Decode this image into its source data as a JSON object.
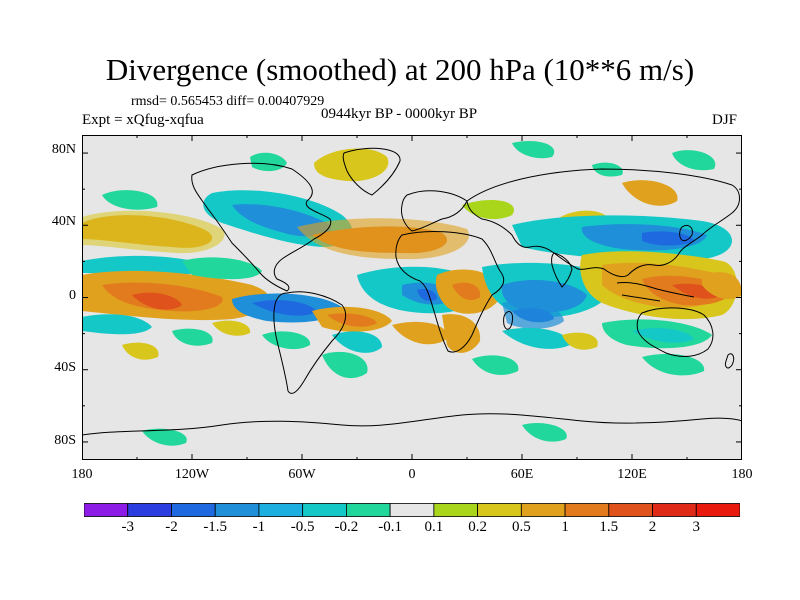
{
  "title": "Divergence (smoothed) at 200 hPa (10**6 m/s)",
  "stats": "rmsd= 0.565453 diff= 0.00407929",
  "experiment": "Expt = xQfug-xqfua",
  "period": "0944kyr BP - 0000kyr BP",
  "season": "DJF",
  "lat_labels": [
    "80N",
    "40N",
    "0",
    "40S",
    "80S"
  ],
  "lon_labels": [
    "180",
    "120W",
    "60W",
    "0",
    "60E",
    "120E",
    "180"
  ],
  "colorbar": {
    "labels": [
      "-3",
      "-2",
      "-1.5",
      "-1",
      "-0.5",
      "-0.2",
      "-0.1",
      "0.1",
      "0.2",
      "0.5",
      "1",
      "1.5",
      "2",
      "3"
    ],
    "colors": [
      "#8c1ce6",
      "#2d3ee1",
      "#1f69e0",
      "#1e8fd8",
      "#1dafe0",
      "#15c8c8",
      "#22d79c",
      "#e6e6e6",
      "#a9d61b",
      "#d8c61d",
      "#e0a11e",
      "#e27b1d",
      "#e0521c",
      "#de2a17",
      "#e81a0d"
    ]
  },
  "map_colors": {
    "background": "#e6e6e6",
    "coastline": "#000000"
  }
}
